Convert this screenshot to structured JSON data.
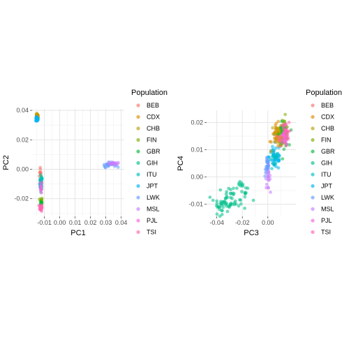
{
  "chart_data": [
    {
      "type": "scatter",
      "xlabel": "PC1",
      "ylabel": "PC2",
      "xlim": [
        -0.018,
        0.042
      ],
      "ylim": [
        -0.032,
        0.041
      ],
      "xticks": [
        -0.01,
        0.0,
        0.01,
        0.02,
        0.03,
        0.04
      ],
      "xtick_labels": [
        "-0.01",
        "0.00",
        "0.01",
        "0.02",
        "0.03",
        "0.04"
      ],
      "yticks": [
        -0.02,
        0.0,
        0.02,
        0.04
      ],
      "ytick_labels": [
        "-0.02",
        "0.00",
        "0.02",
        "0.04"
      ],
      "grid": true,
      "legend_position": "right",
      "clusters": [
        {
          "population": "BEB",
          "cx": -0.0125,
          "cy": -0.003,
          "sx": 0.0004,
          "sy": 0.003,
          "n": 10
        },
        {
          "population": "GIH",
          "cx": -0.0122,
          "cy": -0.009,
          "sx": 0.0004,
          "sy": 0.0025,
          "n": 24
        },
        {
          "population": "ITU",
          "cx": -0.0122,
          "cy": -0.01,
          "sx": 0.0004,
          "sy": 0.0025,
          "n": 14
        },
        {
          "population": "PJL",
          "cx": -0.0122,
          "cy": -0.012,
          "sx": 0.0004,
          "sy": 0.002,
          "n": 10
        },
        {
          "population": "CHB",
          "cx": -0.0148,
          "cy": 0.0365,
          "sx": 0.0004,
          "sy": 0.0006,
          "n": 18
        },
        {
          "population": "CDX",
          "cx": -0.0148,
          "cy": 0.0355,
          "sx": 0.0004,
          "sy": 0.0006,
          "n": 18
        },
        {
          "population": "JPT",
          "cx": -0.0148,
          "cy": 0.034,
          "sx": 0.0004,
          "sy": 0.0008,
          "n": 24
        },
        {
          "population": "FIN",
          "cx": -0.0122,
          "cy": -0.0215,
          "sx": 0.0004,
          "sy": 0.0012,
          "n": 16
        },
        {
          "population": "GBR",
          "cx": -0.0122,
          "cy": -0.0235,
          "sx": 0.0004,
          "sy": 0.0012,
          "n": 16
        },
        {
          "population": "TSI",
          "cx": -0.0122,
          "cy": -0.026,
          "sx": 0.0004,
          "sy": 0.0012,
          "n": 30
        },
        {
          "population": "LWK",
          "cx": 0.032,
          "cy": 0.003,
          "sx": 0.0022,
          "sy": 0.0008,
          "n": 22
        },
        {
          "population": "MSL",
          "cx": 0.035,
          "cy": 0.004,
          "sx": 0.0015,
          "sy": 0.0006,
          "n": 18
        }
      ]
    },
    {
      "type": "scatter",
      "xlabel": "PC3",
      "ylabel": "PC4",
      "xlim": [
        -0.048,
        0.022
      ],
      "ylim": [
        -0.0145,
        0.0245
      ],
      "xticks": [
        -0.04,
        -0.02,
        0.0
      ],
      "xtick_labels": [
        "-0.04",
        "-0.02",
        "0.00"
      ],
      "yticks": [
        -0.01,
        0.0,
        0.01,
        0.02
      ],
      "ytick_labels": [
        "-0.01",
        "0.00",
        "0.01",
        "0.02"
      ],
      "grid": true,
      "legend_position": "right",
      "clusters": [
        {
          "population": "GIH",
          "cx": -0.028,
          "cy": -0.008,
          "sx": 0.006,
          "sy": 0.0022,
          "n": 45
        },
        {
          "population": "GIH",
          "cx": -0.036,
          "cy": -0.0105,
          "sx": 0.004,
          "sy": 0.0015,
          "n": 25
        },
        {
          "population": "GIH",
          "cx": -0.02,
          "cy": -0.004,
          "sx": 0.003,
          "sy": 0.0012,
          "n": 12
        },
        {
          "population": "MSL",
          "cx": 0.0,
          "cy": 0.0,
          "sx": 0.0009,
          "sy": 0.0022,
          "n": 22
        },
        {
          "population": "LWK",
          "cx": -0.0005,
          "cy": 0.004,
          "sx": 0.0009,
          "sy": 0.002,
          "n": 20
        },
        {
          "population": "JPT",
          "cx": 0.006,
          "cy": 0.0075,
          "sx": 0.0025,
          "sy": 0.0025,
          "n": 45
        },
        {
          "population": "ITU",
          "cx": 0.005,
          "cy": 0.006,
          "sx": 0.002,
          "sy": 0.002,
          "n": 18
        },
        {
          "population": "CDX",
          "cx": 0.0075,
          "cy": 0.015,
          "sx": 0.0022,
          "sy": 0.0022,
          "n": 45
        },
        {
          "population": "CHB",
          "cx": 0.01,
          "cy": 0.016,
          "sx": 0.0022,
          "sy": 0.002,
          "n": 35
        },
        {
          "population": "FIN",
          "cx": 0.0125,
          "cy": 0.017,
          "sx": 0.0018,
          "sy": 0.0025,
          "n": 30
        },
        {
          "population": "GBR",
          "cx": 0.0125,
          "cy": 0.0155,
          "sx": 0.0018,
          "sy": 0.0022,
          "n": 30
        },
        {
          "population": "TSI",
          "cx": 0.0135,
          "cy": 0.016,
          "sx": 0.0015,
          "sy": 0.002,
          "n": 40
        },
        {
          "population": "PJL",
          "cx": 0.0125,
          "cy": 0.0135,
          "sx": 0.0012,
          "sy": 0.0015,
          "n": 12
        },
        {
          "population": "BEB",
          "cx": 0.009,
          "cy": 0.0135,
          "sx": 0.0012,
          "sy": 0.0012,
          "n": 10
        }
      ]
    }
  ],
  "legend": {
    "title": "Population",
    "items": [
      {
        "label": "BEB",
        "color": "#F8766D"
      },
      {
        "label": "CDX",
        "color": "#DE8C00"
      },
      {
        "label": "CHB",
        "color": "#B79F00"
      },
      {
        "label": "FIN",
        "color": "#7CAE00"
      },
      {
        "label": "GBR",
        "color": "#00BA38"
      },
      {
        "label": "GIH",
        "color": "#00C08B"
      },
      {
        "label": "ITU",
        "color": "#00BFC4"
      },
      {
        "label": "JPT",
        "color": "#00B4F0"
      },
      {
        "label": "LWK",
        "color": "#619CFF"
      },
      {
        "label": "MSL",
        "color": "#C77CFF"
      },
      {
        "label": "PJL",
        "color": "#F564E3"
      },
      {
        "label": "TSI",
        "color": "#FF64B0"
      }
    ]
  }
}
